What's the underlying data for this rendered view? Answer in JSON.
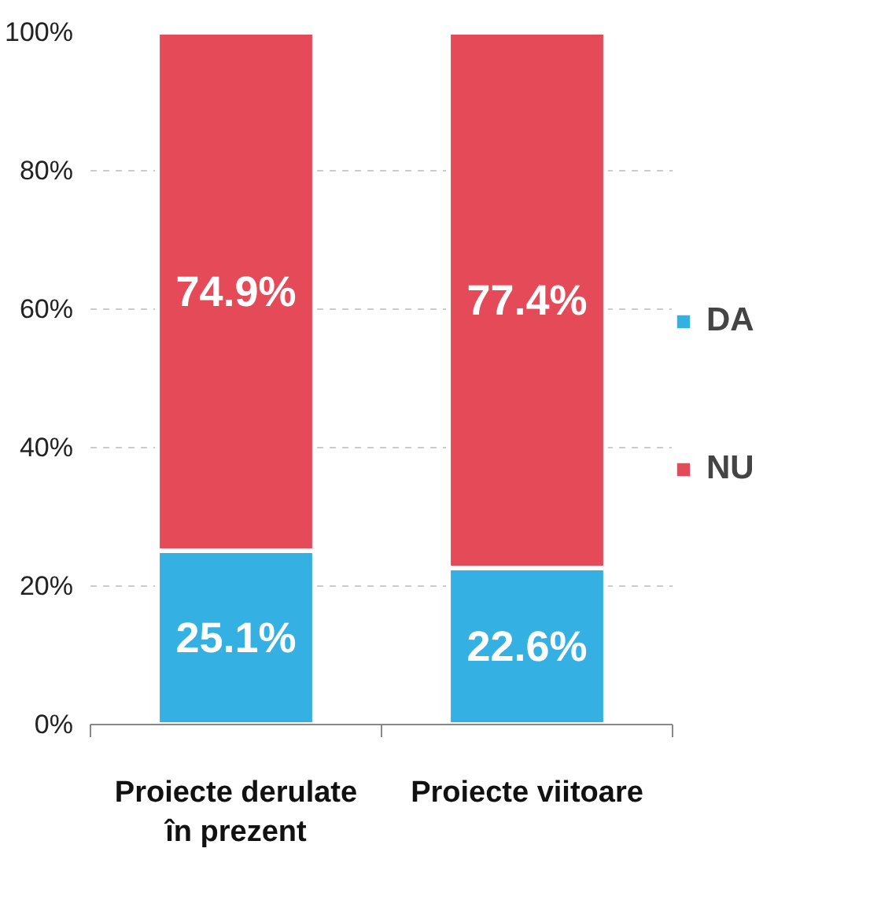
{
  "chart_data": {
    "type": "bar",
    "stacked": true,
    "categories": [
      "Proiecte derulate în prezent",
      "Proiecte viitoare"
    ],
    "series": [
      {
        "name": "DA",
        "color": "#35b0e3",
        "values": [
          25.1,
          22.6
        ],
        "value_labels": [
          "25.1%",
          "22.6%"
        ]
      },
      {
        "name": "NU",
        "color": "#e44a57",
        "values": [
          74.9,
          77.4
        ],
        "value_labels": [
          "74.9%",
          "77.4%"
        ]
      }
    ],
    "ylim": [
      0,
      100
    ],
    "yticks": [
      {
        "value": 0,
        "label": "0%"
      },
      {
        "value": 20,
        "label": "20%"
      },
      {
        "value": 40,
        "label": "40%"
      },
      {
        "value": 60,
        "label": "60%"
      },
      {
        "value": 80,
        "label": "80%"
      },
      {
        "value": 100,
        "label": "100%"
      }
    ],
    "grid": "y",
    "legend": "right"
  }
}
